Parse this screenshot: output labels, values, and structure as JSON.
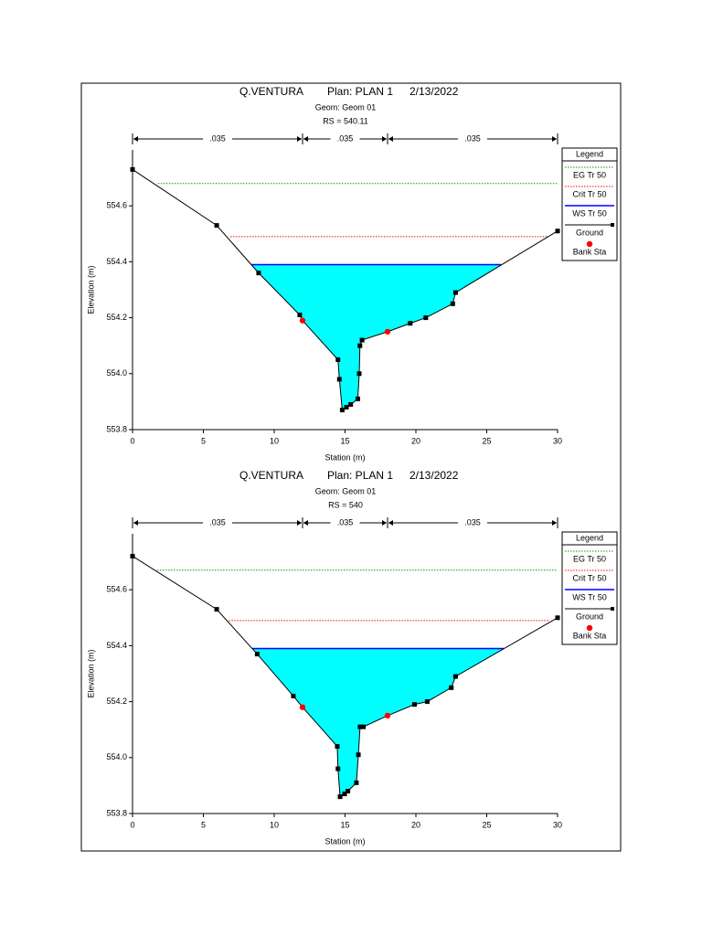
{
  "chart_data": [
    {
      "type": "cross-section",
      "title": "Q.VENTURA",
      "plan": "Plan: PLAN 1",
      "date": "2/13/2022",
      "geom": "Geom: Geom 01",
      "rs": "RS = 540.11",
      "xlabel": "Station (m)",
      "ylabel": "Elevation (m)",
      "xlim": [
        0,
        30
      ],
      "xticks": [
        0,
        5,
        10,
        15,
        20,
        25,
        30
      ],
      "ylim": [
        553.8,
        554.8
      ],
      "yticks": [
        553.8,
        {
          "value": 554.0,
          "label": "554.0"
        },
        554.2,
        554.4,
        554.6
      ],
      "manning_n": [
        ".035",
        ".035",
        ".035"
      ],
      "legend_title": "Legend",
      "series": [
        {
          "name": "EG Tr 50",
          "color": "#00a000",
          "style": "dotted",
          "x": [
            1.8,
            30
          ],
          "values": [
            554.68,
            554.68
          ]
        },
        {
          "name": "Crit Tr 50",
          "color": "#ff0000",
          "style": "dotted",
          "x": [
            6.9,
            29.3
          ],
          "values": [
            554.49,
            554.49
          ]
        },
        {
          "name": "WS Tr 50",
          "color": "#0000ff",
          "style": "solid",
          "fill": "#00ffff",
          "x": [
            8.4,
            26.0
          ],
          "values": [
            554.39,
            554.39
          ]
        },
        {
          "name": "Ground",
          "color": "#000000",
          "style": "solid",
          "marker": "square",
          "x": [
            0,
            5.94,
            8.9,
            11.8,
            12,
            14.5,
            14.6,
            14.8,
            15.1,
            15.4,
            15.9,
            16.0,
            16.05,
            16.2,
            18,
            19.6,
            20.7,
            22.6,
            22.8,
            30
          ],
          "values": [
            554.73,
            554.53,
            554.36,
            554.21,
            554.19,
            554.05,
            553.98,
            553.87,
            553.88,
            553.89,
            553.91,
            554.0,
            554.1,
            554.12,
            554.15,
            554.18,
            554.2,
            554.25,
            554.29,
            554.51
          ]
        },
        {
          "name": "Bank Sta",
          "color": "#ff0000",
          "marker": "circle",
          "x": [
            12,
            18
          ],
          "values": [
            554.19,
            554.15
          ]
        }
      ]
    },
    {
      "type": "cross-section",
      "title": "Q.VENTURA",
      "plan": "Plan: PLAN 1",
      "date": "2/13/2022",
      "geom": "Geom: Geom 01",
      "rs": "RS = 540",
      "xlabel": "Station (m)",
      "ylabel": "Elevation (m)",
      "xlim": [
        0,
        30
      ],
      "xticks": [
        0,
        5,
        10,
        15,
        20,
        25,
        30
      ],
      "ylim": [
        553.8,
        554.8
      ],
      "yticks": [
        553.8,
        {
          "value": 554.0,
          "label": "554.0"
        },
        554.2,
        554.4,
        554.6
      ],
      "manning_n": [
        ".035",
        ".035",
        ".035"
      ],
      "legend_title": "Legend",
      "series": [
        {
          "name": "EG Tr 50",
          "color": "#00a000",
          "style": "dotted",
          "x": [
            1.74,
            30
          ],
          "values": [
            554.67,
            554.67
          ]
        },
        {
          "name": "Crit Tr 50",
          "color": "#ff0000",
          "style": "dotted",
          "x": [
            6.8,
            29.4
          ],
          "values": [
            554.49,
            554.49
          ]
        },
        {
          "name": "WS Tr 50",
          "color": "#0000ff",
          "style": "solid",
          "fill": "#00ffff",
          "x": [
            8.45,
            26.2
          ],
          "values": [
            554.39,
            554.39
          ]
        },
        {
          "name": "Ground",
          "color": "#000000",
          "style": "solid",
          "marker": "square",
          "x": [
            0,
            5.94,
            8.8,
            11.35,
            12,
            14.45,
            14.5,
            14.65,
            14.97,
            15.2,
            15.8,
            15.94,
            16.06,
            16.3,
            18,
            19.9,
            20.8,
            22.5,
            22.8,
            30
          ],
          "values": [
            554.72,
            554.53,
            554.37,
            554.22,
            554.18,
            554.04,
            553.96,
            553.86,
            553.87,
            553.88,
            553.91,
            554.01,
            554.11,
            554.11,
            554.15,
            554.19,
            554.2,
            554.25,
            554.29,
            554.5
          ]
        },
        {
          "name": "Bank Sta",
          "color": "#ff0000",
          "marker": "circle",
          "x": [
            12,
            18
          ],
          "values": [
            554.18,
            554.15
          ]
        }
      ]
    }
  ]
}
